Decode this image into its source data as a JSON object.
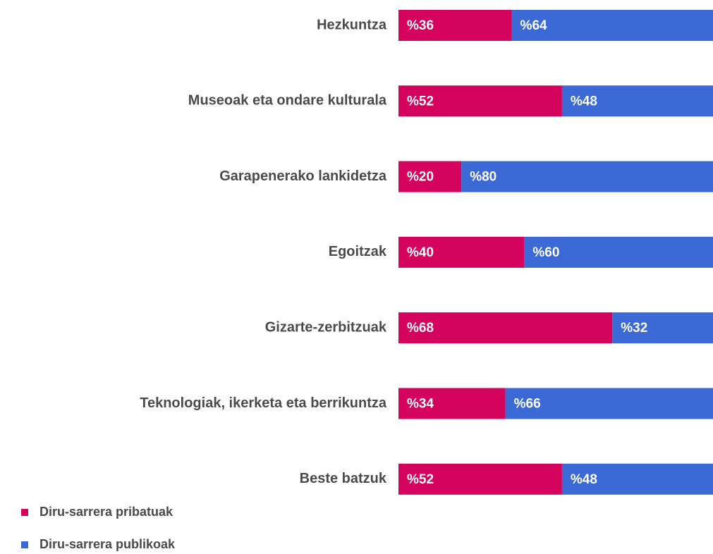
{
  "chart_data": {
    "type": "stacked-bar-horizontal",
    "categories": [
      "Hezkuntza",
      "Museoak eta ondare kulturala",
      "Garapenerako lankidetza",
      "Egoitzak",
      "Gizarte-zerbitzuak",
      "Teknologiak, ikerketa eta berrikuntza",
      "Beste batzuk"
    ],
    "series": [
      {
        "name": "Diru-sarrera pribatuak",
        "color": "#d4045e",
        "values": [
          36,
          52,
          20,
          40,
          68,
          34,
          52
        ],
        "value_labels": [
          "%36",
          "%52",
          "%20",
          "%40",
          "%68",
          "%34",
          "%52"
        ]
      },
      {
        "name": "Diru-sarrera publikoak",
        "color": "#3b69d6",
        "values": [
          64,
          48,
          80,
          60,
          32,
          66,
          48
        ],
        "value_labels": [
          "%64",
          "%48",
          "%80",
          "%60",
          "%32",
          "%66",
          "%48"
        ]
      }
    ],
    "xlim": [
      0,
      100
    ],
    "legend": "bottom-left"
  }
}
